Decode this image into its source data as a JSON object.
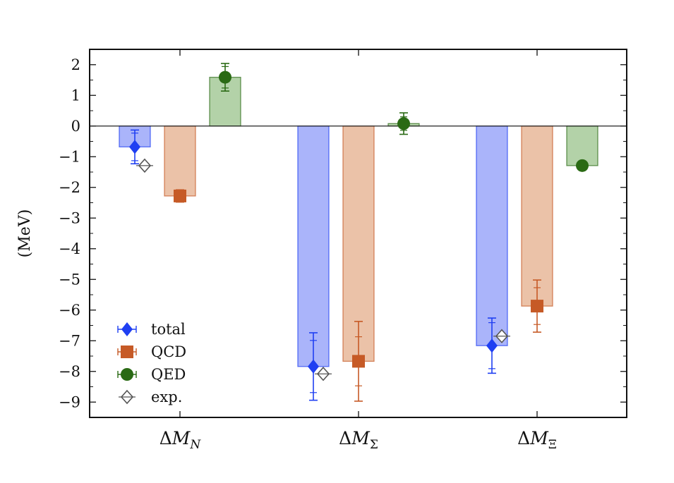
{
  "chart_data": {
    "type": "bar",
    "ylabel": "(MeV)",
    "xlabel": "",
    "title": "",
    "ylim": [
      -9.5,
      2.5
    ],
    "yticks": [
      2,
      1,
      0,
      -1,
      -2,
      -3,
      -4,
      -5,
      -6,
      -7,
      -8,
      -9
    ],
    "grid": false,
    "legend_position": "bottom-left",
    "categories": [
      {
        "symbol": "ΔM",
        "sub": "N"
      },
      {
        "symbol": "ΔM",
        "sub": "Σ"
      },
      {
        "symbol": "ΔM",
        "sub": "Ξ"
      }
    ],
    "series": [
      {
        "name": "total",
        "marker": "diamond",
        "color": "#1f3ff2",
        "bar_fill": "#aab4fa",
        "values": [
          -0.68,
          -7.84,
          -7.16
        ],
        "err_inner": [
          0.45,
          0.85,
          0.75
        ],
        "err_outer": [
          0.55,
          1.1,
          0.9
        ]
      },
      {
        "name": "QCD",
        "marker": "square",
        "color": "#c65a26",
        "bar_fill": "#ebc2a8",
        "values": [
          -2.28,
          -7.67,
          -5.87
        ],
        "err_inner": [
          0.15,
          0.8,
          0.6
        ],
        "err_outer": [
          0.2,
          1.3,
          0.85
        ]
      },
      {
        "name": "QED",
        "marker": "circle",
        "color": "#2a6a14",
        "bar_fill": "#b3d2a8",
        "values": [
          1.59,
          0.08,
          -1.29
        ],
        "err_inner": [
          0.35,
          0.22,
          0.04
        ],
        "err_outer": [
          0.45,
          0.35,
          0.06
        ]
      }
    ],
    "experimental": {
      "name": "exp.",
      "marker": "open-diamond",
      "color": "#555555",
      "values": [
        -1.29,
        -8.08,
        -6.85
      ]
    }
  }
}
